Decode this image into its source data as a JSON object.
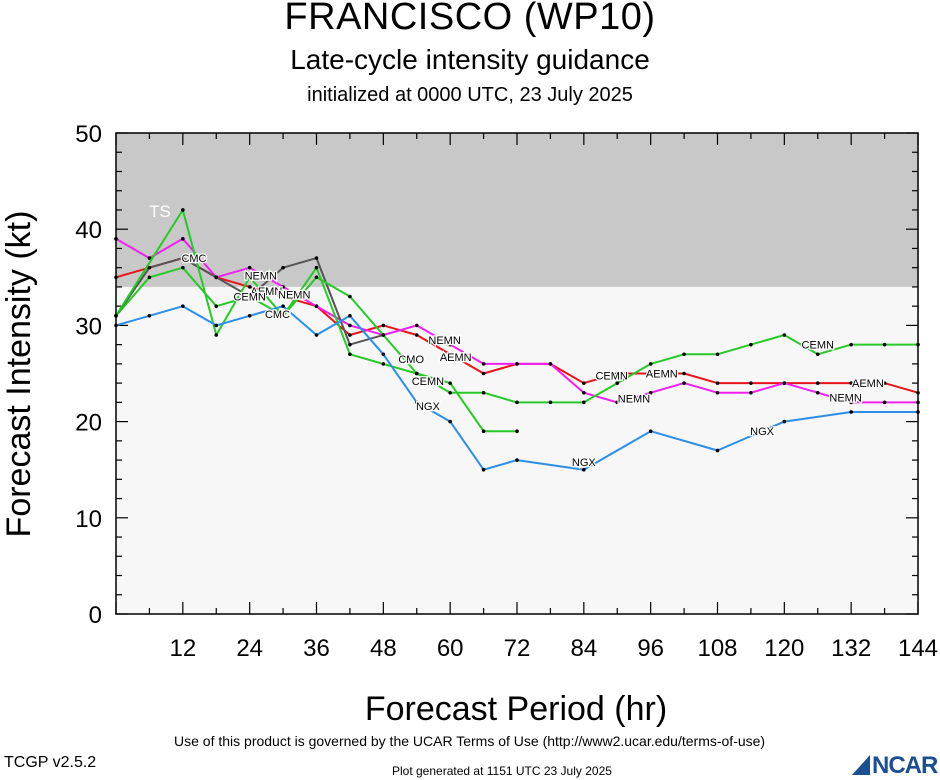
{
  "header": {
    "title": "FRANCISCO (WP10)",
    "subtitle": "Late-cycle intensity guidance",
    "initialized": "initialized at 0000 UTC, 23 July 2025"
  },
  "footer": {
    "terms": "Use of this product is governed by the UCAR Terms of Use (http://www2.ucar.edu/terms-of-use)",
    "version": "TCGP v2.5.2",
    "generated": "Plot generated at 1151 UTC   23 July 2025",
    "logo_text": "NCAR"
  },
  "colors": {
    "ts_band": "#c8c8c8",
    "below_band": "#f7f7f7",
    "logo": "#1c4f8f"
  },
  "chart_data": {
    "type": "line",
    "title": "FRANCISCO (WP10)",
    "xlabel": "Forecast Period (hr)",
    "ylabel": "Forecast Intensity (kt)",
    "xlim": [
      0,
      144
    ],
    "ylim": [
      0,
      50
    ],
    "xticks": [
      12,
      24,
      36,
      48,
      60,
      72,
      84,
      96,
      108,
      120,
      132,
      144
    ],
    "yticks": [
      0,
      10,
      20,
      30,
      40,
      50
    ],
    "bands": [
      {
        "label": "TS",
        "from": 34,
        "to": 50,
        "color": "#c8c8c8"
      }
    ],
    "series": [
      {
        "name": "AEMN",
        "color": "#e8141c",
        "x": [
          0,
          12,
          18,
          24,
          30,
          36,
          42,
          48,
          54,
          60,
          66,
          72,
          78,
          84,
          90,
          96,
          102,
          108,
          114,
          120,
          126,
          132,
          138,
          144
        ],
        "y": [
          35,
          37,
          35,
          34,
          33,
          32,
          29,
          30,
          29,
          27,
          25,
          26,
          26,
          24,
          25,
          25,
          25,
          24,
          24,
          24,
          24,
          24,
          24,
          23
        ],
        "labels": [
          {
            "x": 27,
            "y": 33.6
          },
          {
            "x": 61,
            "y": 26.7
          },
          {
            "x": 98,
            "y": 25.0
          },
          {
            "x": 135,
            "y": 24.0
          }
        ]
      },
      {
        "name": "NEMN",
        "color": "#f020f0",
        "x": [
          0,
          6,
          12,
          18,
          24,
          30,
          36,
          42,
          48,
          54,
          60,
          66,
          72,
          78,
          84,
          90,
          96,
          102,
          108,
          114,
          120,
          126,
          132,
          138,
          144
        ],
        "y": [
          39,
          37,
          39,
          35,
          36,
          34,
          32,
          30,
          29,
          30,
          28,
          26,
          26,
          26,
          23,
          22,
          23,
          24,
          23,
          23,
          24,
          23,
          22,
          22,
          22
        ],
        "labels": [
          {
            "x": 26,
            "y": 35.2
          },
          {
            "x": 32,
            "y": 33.2
          },
          {
            "x": 59,
            "y": 28.5
          },
          {
            "x": 93,
            "y": 22.4
          },
          {
            "x": 131,
            "y": 22.5
          }
        ]
      },
      {
        "name": "CEMN",
        "color": "#28c828",
        "x": [
          0,
          6,
          12,
          18,
          24,
          30,
          36,
          42,
          48,
          54,
          60,
          66,
          72,
          78,
          84,
          90,
          96,
          102,
          108,
          114,
          120,
          126,
          132,
          138,
          144
        ],
        "y": [
          31,
          35,
          36,
          32,
          33,
          31,
          36,
          27,
          26,
          25,
          23,
          23,
          22,
          22,
          22,
          24,
          26,
          27,
          27,
          28,
          29,
          27,
          28,
          28,
          28
        ],
        "labels": [
          {
            "x": 24,
            "y": 33.0
          },
          {
            "x": 56,
            "y": 24.2
          },
          {
            "x": 89,
            "y": 24.8
          },
          {
            "x": 126,
            "y": 28.0
          }
        ]
      },
      {
        "name": "CMC",
        "color": "#555555",
        "x": [
          0,
          6,
          12,
          18,
          24,
          30,
          36,
          42,
          48
        ],
        "y": [
          31,
          36,
          37,
          35,
          33,
          36,
          37,
          28,
          29
        ],
        "labels": [
          {
            "x": 14,
            "y": 37.0
          },
          {
            "x": 29,
            "y": 31.2
          }
        ]
      },
      {
        "name": "CMO",
        "color": "#28c828",
        "x": [
          0,
          12,
          18,
          24,
          30,
          36,
          42,
          48,
          54,
          60,
          66,
          72
        ],
        "y": [
          31,
          42,
          29,
          35,
          31,
          35,
          33,
          29,
          25,
          24,
          19,
          19
        ],
        "labels": [
          {
            "x": 53,
            "y": 26.5
          }
        ]
      },
      {
        "name": "NGX",
        "color": "#2c8ee8",
        "x": [
          0,
          6,
          12,
          18,
          24,
          30,
          36,
          42,
          48,
          54,
          60,
          66,
          72,
          84,
          96,
          108,
          120,
          132,
          144
        ],
        "y": [
          30,
          31,
          32,
          30,
          31,
          32,
          29,
          31,
          27,
          22,
          20,
          15,
          16,
          15,
          19,
          17,
          20,
          21,
          21
        ],
        "labels": [
          {
            "x": 56,
            "y": 21.6
          },
          {
            "x": 84,
            "y": 15.8
          },
          {
            "x": 116,
            "y": 19.0
          }
        ]
      }
    ]
  }
}
